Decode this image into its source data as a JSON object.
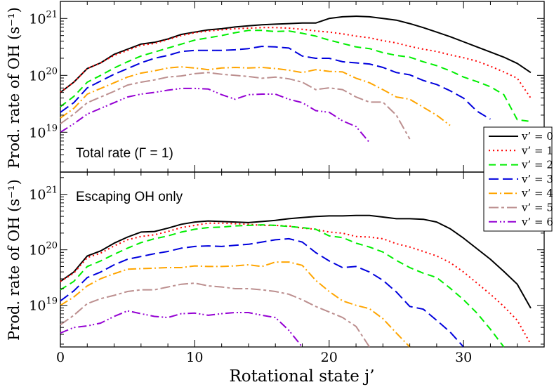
{
  "chart_data": [
    {
      "type": "line",
      "panel": "top",
      "annotation": "Total rate (Γ = 1)",
      "ylabel": "Prod. rate of OH (s⁻¹)",
      "yscale": "log",
      "ylim_log10": [
        18.3,
        21.3
      ],
      "xlim": [
        0,
        36
      ],
      "yticks": [
        {
          "base": "10",
          "exp": "21",
          "log": 21
        },
        {
          "base": "10",
          "exp": "20",
          "log": 20
        },
        {
          "base": "10",
          "exp": "19",
          "log": 19
        }
      ],
      "series": [
        {
          "name": "v' = 0",
          "color": "#000000",
          "dash": "",
          "x": [
            0,
            1,
            2,
            3,
            4,
            5,
            6,
            7,
            8,
            9,
            10,
            11,
            12,
            13,
            14,
            15,
            16,
            17,
            18,
            19,
            20,
            21,
            22,
            23,
            24,
            25,
            26,
            27,
            28,
            29,
            30,
            31,
            32,
            33,
            34,
            35
          ],
          "values": [
            19.7,
            19.88,
            20.12,
            20.22,
            20.37,
            20.46,
            20.55,
            20.58,
            20.64,
            20.72,
            20.76,
            20.8,
            20.82,
            20.85,
            20.87,
            20.89,
            20.9,
            20.91,
            20.92,
            20.92,
            21.0,
            21.03,
            21.04,
            21.03,
            21.0,
            20.97,
            20.91,
            20.84,
            20.76,
            20.68,
            20.59,
            20.5,
            20.41,
            20.32,
            20.21,
            20.05
          ]
        },
        {
          "name": "v' = 1",
          "color": "#ff0000",
          "dash": "2,4",
          "x": [
            0,
            1,
            2,
            3,
            4,
            5,
            6,
            7,
            8,
            9,
            10,
            11,
            12,
            13,
            14,
            15,
            16,
            17,
            18,
            19,
            20,
            21,
            22,
            23,
            24,
            25,
            26,
            27,
            28,
            29,
            30,
            31,
            32,
            33,
            34,
            35
          ],
          "values": [
            19.7,
            19.88,
            20.12,
            20.22,
            20.35,
            20.44,
            20.53,
            20.56,
            20.63,
            20.7,
            20.75,
            20.78,
            20.8,
            20.82,
            20.83,
            20.84,
            20.84,
            20.83,
            20.81,
            20.78,
            20.76,
            20.73,
            20.69,
            20.66,
            20.61,
            20.57,
            20.51,
            20.46,
            20.42,
            20.36,
            20.31,
            20.25,
            20.16,
            20.06,
            19.95,
            19.6
          ]
        },
        {
          "name": "v' = 2",
          "color": "#00ee00",
          "dash": "10,6",
          "x": [
            0,
            1,
            2,
            3,
            4,
            5,
            6,
            7,
            8,
            9,
            10,
            11,
            12,
            13,
            14,
            15,
            16,
            17,
            18,
            19,
            20,
            21,
            22,
            23,
            24,
            25,
            26,
            27,
            28,
            29,
            30,
            31,
            32,
            33,
            34,
            35
          ],
          "values": [
            19.45,
            19.63,
            19.88,
            20.0,
            20.13,
            20.24,
            20.34,
            20.41,
            20.48,
            20.55,
            20.62,
            20.66,
            20.7,
            20.75,
            20.79,
            20.79,
            20.77,
            20.78,
            20.74,
            20.69,
            20.62,
            20.56,
            20.5,
            20.47,
            20.4,
            20.35,
            20.32,
            20.24,
            20.17,
            20.08,
            19.97,
            19.89,
            19.8,
            19.66,
            19.22,
            19.19
          ]
        },
        {
          "name": "v' = 3",
          "color": "#0000dd",
          "dash": "14,6",
          "x": [
            0,
            1,
            2,
            3,
            4,
            5,
            6,
            7,
            8,
            9,
            10,
            11,
            12,
            13,
            14,
            15,
            16,
            17,
            18,
            19,
            20,
            21,
            22,
            23,
            24,
            25,
            26,
            27,
            28,
            29,
            30,
            31,
            32
          ],
          "values": [
            19.35,
            19.52,
            19.78,
            19.9,
            20.02,
            20.12,
            20.22,
            20.3,
            20.35,
            20.42,
            20.44,
            20.44,
            20.44,
            20.45,
            20.47,
            20.51,
            20.5,
            20.48,
            20.34,
            20.3,
            20.3,
            20.24,
            20.22,
            20.2,
            20.14,
            20.05,
            20.01,
            19.91,
            19.84,
            19.73,
            19.6,
            19.37,
            19.23
          ]
        },
        {
          "name": "v' = 4",
          "color": "#ffa500",
          "dash": "12,4,2,4",
          "x": [
            0,
            1,
            2,
            3,
            4,
            5,
            6,
            7,
            8,
            9,
            10,
            11,
            12,
            13,
            14,
            15,
            16,
            17,
            18,
            19,
            20,
            21,
            22,
            23,
            24,
            25,
            26,
            27,
            28,
            29
          ],
          "values": [
            19.25,
            19.42,
            19.67,
            19.77,
            19.87,
            19.97,
            20.04,
            20.08,
            20.13,
            20.15,
            20.13,
            20.1,
            20.13,
            20.14,
            20.13,
            20.14,
            20.12,
            20.09,
            20.05,
            20.1,
            20.07,
            20.06,
            19.95,
            19.87,
            19.75,
            19.62,
            19.58,
            19.44,
            19.3,
            19.12
          ]
        },
        {
          "name": "v' = 5",
          "color": "#bc8f8f",
          "dash": "14,4,4,4",
          "x": [
            0,
            1,
            2,
            3,
            4,
            5,
            6,
            7,
            8,
            9,
            10,
            11,
            12,
            13,
            14,
            15,
            16,
            17,
            18,
            19,
            20,
            21,
            22,
            23,
            24,
            25,
            26
          ],
          "values": [
            19.15,
            19.32,
            19.52,
            19.62,
            19.72,
            19.83,
            19.88,
            19.92,
            19.97,
            19.99,
            20.03,
            20.05,
            20.02,
            20.0,
            19.98,
            19.95,
            19.97,
            19.94,
            19.88,
            19.75,
            19.78,
            19.75,
            19.62,
            19.53,
            19.53,
            19.3,
            18.88
          ]
        },
        {
          "name": "v' = 6",
          "color": "#9400d3",
          "dash": "12,4,2,3,2,4",
          "x": [
            0,
            1,
            2,
            3,
            4,
            5,
            6,
            7,
            8,
            9,
            10,
            11,
            12,
            13,
            14,
            15,
            16,
            17,
            18,
            19,
            20,
            21,
            22,
            23
          ],
          "values": [
            19.0,
            19.15,
            19.32,
            19.42,
            19.52,
            19.62,
            19.67,
            19.7,
            19.74,
            19.77,
            19.77,
            19.76,
            19.66,
            19.58,
            19.66,
            19.67,
            19.67,
            19.58,
            19.52,
            19.38,
            19.35,
            19.2,
            19.1,
            18.82
          ]
        }
      ]
    },
    {
      "type": "line",
      "panel": "bottom",
      "annotation": "Escaping OH only",
      "ylabel": "Prod. rate of OH (s⁻¹)",
      "xlabel": "Rotational state j’",
      "yscale": "log",
      "ylim_log10": [
        18.25,
        21.4
      ],
      "xlim": [
        0,
        36
      ],
      "xticks": [
        0,
        10,
        20,
        30
      ],
      "yticks": [
        {
          "base": "10",
          "exp": "21",
          "log": 21
        },
        {
          "base": "10",
          "exp": "20",
          "log": 20
        },
        {
          "base": "10",
          "exp": "19",
          "log": 19
        }
      ],
      "series": [
        {
          "name": "v' = 0",
          "color": "#000000",
          "dash": "",
          "x": [
            0,
            1,
            2,
            3,
            4,
            5,
            6,
            7,
            8,
            9,
            10,
            11,
            12,
            13,
            14,
            15,
            16,
            17,
            18,
            19,
            20,
            21,
            22,
            23,
            24,
            25,
            26,
            27,
            28,
            29,
            30,
            31,
            32,
            33,
            34,
            35
          ],
          "values": [
            19.43,
            19.6,
            19.89,
            19.98,
            20.12,
            20.23,
            20.32,
            20.33,
            20.39,
            20.46,
            20.5,
            20.52,
            20.51,
            20.5,
            20.49,
            20.51,
            20.53,
            20.56,
            20.58,
            20.6,
            20.61,
            20.61,
            20.62,
            20.62,
            20.59,
            20.56,
            20.56,
            20.55,
            20.5,
            20.38,
            20.21,
            20.02,
            19.83,
            19.61,
            19.38,
            18.95
          ]
        },
        {
          "name": "v' = 1",
          "color": "#ff0000",
          "dash": "2,4",
          "x": [
            0,
            1,
            2,
            3,
            4,
            5,
            6,
            7,
            8,
            9,
            10,
            11,
            12,
            13,
            14,
            15,
            16,
            17,
            18,
            19,
            20,
            21,
            22,
            23,
            24,
            25,
            26,
            27,
            28,
            29,
            30,
            31,
            32,
            33,
            34,
            35
          ],
          "values": [
            19.43,
            19.58,
            19.86,
            19.94,
            20.07,
            20.18,
            20.24,
            20.27,
            20.33,
            20.4,
            20.44,
            20.48,
            20.48,
            20.47,
            20.46,
            20.44,
            20.44,
            20.43,
            20.39,
            20.37,
            20.32,
            20.3,
            20.24,
            20.23,
            20.2,
            20.11,
            20.05,
            19.97,
            19.89,
            19.77,
            19.6,
            19.4,
            19.2,
            18.98,
            18.73,
            18.3
          ]
        },
        {
          "name": "v' = 2",
          "color": "#00ee00",
          "dash": "10,6",
          "x": [
            0,
            1,
            2,
            3,
            4,
            5,
            6,
            7,
            8,
            9,
            10,
            11,
            12,
            13,
            14,
            15,
            16,
            17,
            18,
            19,
            20,
            21,
            22,
            23,
            24,
            25,
            26,
            27,
            28,
            29,
            30,
            31,
            32,
            33
          ],
          "values": [
            19.28,
            19.43,
            19.7,
            19.8,
            19.92,
            20.03,
            20.13,
            20.2,
            20.25,
            20.32,
            20.37,
            20.4,
            20.41,
            20.43,
            20.44,
            20.45,
            20.44,
            20.42,
            20.4,
            20.37,
            20.25,
            20.22,
            20.12,
            20.05,
            19.96,
            19.81,
            19.68,
            19.58,
            19.5,
            19.31,
            19.1,
            18.86,
            18.57,
            18.25
          ]
        },
        {
          "name": "v' = 3",
          "color": "#0000dd",
          "dash": "14,6",
          "x": [
            0,
            1,
            2,
            3,
            4,
            5,
            6,
            7,
            8,
            9,
            10,
            11,
            12,
            13,
            14,
            15,
            16,
            17,
            18,
            19,
            20,
            21,
            22,
            23,
            24,
            25,
            26,
            27,
            28,
            29,
            30
          ],
          "values": [
            19.08,
            19.26,
            19.5,
            19.6,
            19.73,
            19.83,
            19.88,
            19.93,
            19.97,
            20.03,
            20.06,
            20.07,
            20.06,
            20.08,
            20.1,
            20.14,
            20.18,
            20.2,
            20.14,
            19.95,
            19.8,
            19.68,
            19.7,
            19.6,
            19.45,
            19.24,
            18.98,
            18.93,
            18.73,
            18.52,
            18.25
          ]
        },
        {
          "name": "v' = 4",
          "color": "#ffa500",
          "dash": "12,4,2,4",
          "x": [
            0,
            1,
            2,
            3,
            4,
            5,
            6,
            7,
            8,
            9,
            10,
            11,
            12,
            13,
            14,
            15,
            16,
            17,
            18,
            19,
            20,
            21,
            22,
            23,
            24,
            25,
            26
          ],
          "values": [
            19.0,
            19.15,
            19.35,
            19.48,
            19.57,
            19.65,
            19.66,
            19.67,
            19.68,
            19.68,
            19.71,
            19.7,
            19.7,
            19.71,
            19.73,
            19.7,
            19.78,
            19.78,
            19.72,
            19.45,
            19.25,
            19.08,
            19.0,
            18.94,
            18.76,
            18.5,
            18.25
          ]
        },
        {
          "name": "v' = 5",
          "color": "#bc8f8f",
          "dash": "14,4,4,4",
          "x": [
            0,
            1,
            2,
            3,
            4,
            5,
            6,
            7,
            8,
            9,
            10,
            11,
            12,
            13,
            14,
            15,
            16,
            17,
            18,
            19,
            20,
            21,
            22,
            23
          ],
          "values": [
            18.65,
            18.82,
            19.03,
            19.12,
            19.18,
            19.25,
            19.28,
            19.28,
            19.33,
            19.38,
            19.4,
            19.35,
            19.33,
            19.3,
            19.3,
            19.28,
            19.25,
            19.2,
            19.1,
            18.98,
            18.88,
            18.78,
            18.62,
            18.25
          ]
        },
        {
          "name": "v' = 6",
          "color": "#9400d3",
          "dash": "12,4,2,3,2,4",
          "x": [
            0,
            1,
            2,
            3,
            4,
            5,
            6,
            7,
            8,
            9,
            10,
            11,
            12,
            13,
            14,
            15,
            16,
            17,
            18
          ],
          "values": [
            18.5,
            18.6,
            18.63,
            18.68,
            18.8,
            18.9,
            18.85,
            18.8,
            18.78,
            18.85,
            18.86,
            18.82,
            18.85,
            18.87,
            18.87,
            18.82,
            18.78,
            18.55,
            18.25
          ]
        }
      ]
    }
  ],
  "legend": {
    "entries": [
      {
        "label": "v’ = 0",
        "color": "#000000",
        "dash": ""
      },
      {
        "label": "v’ = 1",
        "color": "#ff0000",
        "dash": "2,4"
      },
      {
        "label": "v’ = 2",
        "color": "#00ee00",
        "dash": "10,6"
      },
      {
        "label": "v’ = 3",
        "color": "#0000dd",
        "dash": "14,6"
      },
      {
        "label": "v’ = 4",
        "color": "#ffa500",
        "dash": "12,4,2,4"
      },
      {
        "label": "v’ = 5",
        "color": "#bc8f8f",
        "dash": "14,4,4,4"
      },
      {
        "label": "v’ = 6",
        "color": "#9400d3",
        "dash": "12,4,2,3,2,4"
      }
    ]
  }
}
